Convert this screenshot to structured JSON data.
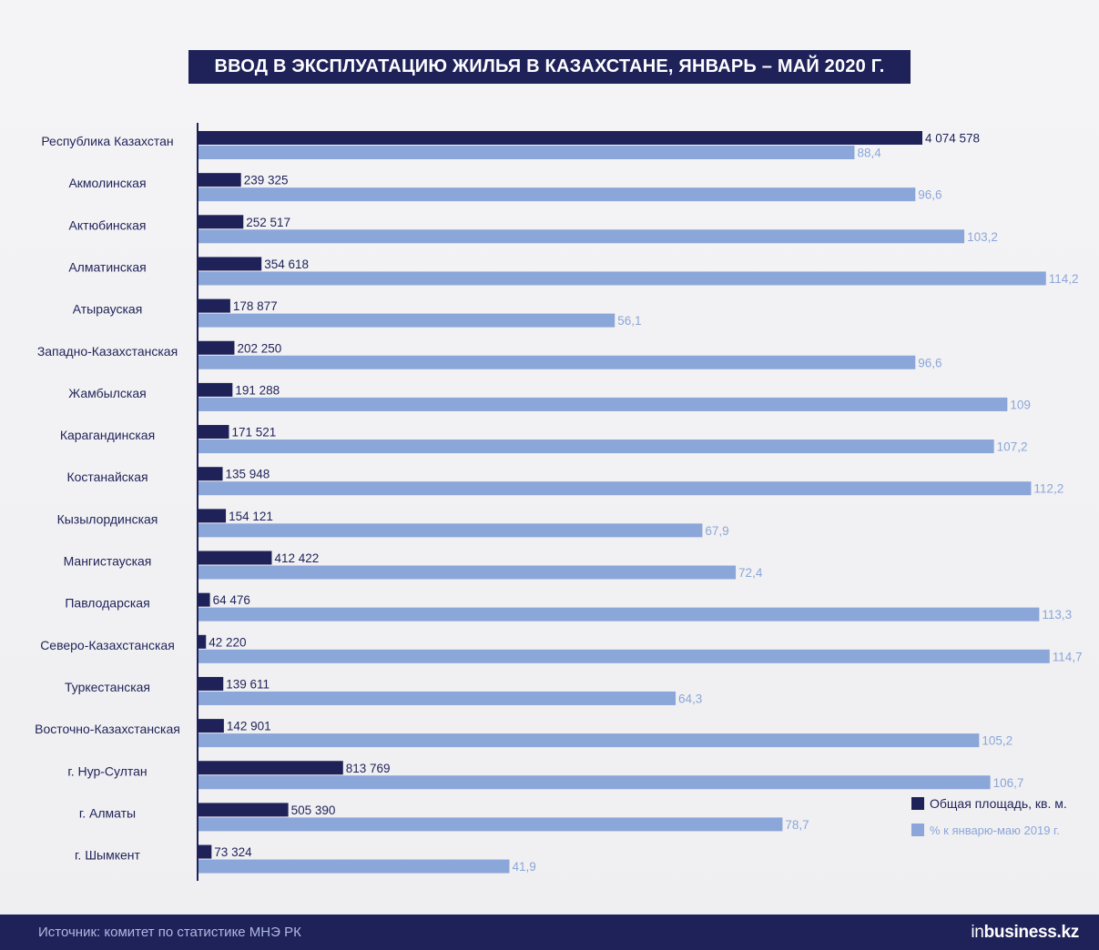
{
  "header": {
    "title": "ВВОД В ЭКСПЛУАТАЦИЮ ЖИЛЬЯ В КАЗАХСТАНЕ, ЯНВАРЬ – МАЙ 2020 Г."
  },
  "colors": {
    "primary": "#1f2259",
    "secondary": "#8ba6d8",
    "axis": "#1f2259"
  },
  "chart_data": {
    "type": "bar",
    "orientation": "horizontal",
    "title": "ВВОД В ЭКСПЛУАТАЦИЮ ЖИЛЬЯ В КАЗАХСТАНЕ, ЯНВАРЬ – МАЙ 2020 Г.",
    "grid": false,
    "legend_position": "bottom-right",
    "categories": [
      "Республика Казахстан",
      "Акмолинская",
      "Актюбинская",
      "Алматинская",
      "Атырауская",
      "Западно-Казахстанская",
      "Жамбылская",
      "Карагандинская",
      "Костанайская",
      "Кызылординская",
      "Мангистауская",
      "Павлодарская",
      "Северо-Казахстанская",
      "Туркестанская",
      "Восточно-Казахстанская",
      "г. Нур-Султан",
      "г. Алматы",
      "г. Шымкент"
    ],
    "series": [
      {
        "name": "Общая площадь, кв. м.",
        "values": [
          4074578,
          239325,
          252517,
          354618,
          178877,
          202250,
          191288,
          171521,
          135948,
          154121,
          412422,
          64476,
          42220,
          139611,
          142901,
          813769,
          505390,
          73324
        ],
        "labels": [
          "4 074 578",
          "239 325",
          "252 517",
          "354 618",
          "178 877",
          "202 250",
          "191 288",
          "171 521",
          "135 948",
          "154 121",
          "412 422",
          "64 476",
          "42 220",
          "139 611",
          "142 901",
          "813 769",
          "505 390",
          "73 324"
        ]
      },
      {
        "name": "% к январю-маю 2019 г.",
        "values": [
          88.4,
          96.6,
          103.2,
          114.2,
          56.1,
          96.6,
          109,
          107.2,
          112.2,
          67.9,
          72.4,
          113.3,
          114.7,
          64.3,
          105.2,
          106.7,
          78.7,
          41.9
        ],
        "labels": [
          "88,4",
          "96,6",
          "103,2",
          "114,2",
          "56,1",
          "96,6",
          "109",
          "107,2",
          "112,2",
          "67,9",
          "72,4",
          "113,3",
          "114,7",
          "64,3",
          "105,2",
          "106,7",
          "78,7",
          "41,9"
        ]
      }
    ]
  },
  "legend": {
    "items": [
      {
        "label": "Общая площадь, кв. м.",
        "color": "#1f2259"
      },
      {
        "label": "% к январю-маю 2019 г.",
        "color": "#8ba6d8"
      }
    ]
  },
  "footer": {
    "source": "Источник: комитет по статистике МНЭ РК",
    "logo_prefix": "in",
    "logo_rest": "business.kz"
  }
}
